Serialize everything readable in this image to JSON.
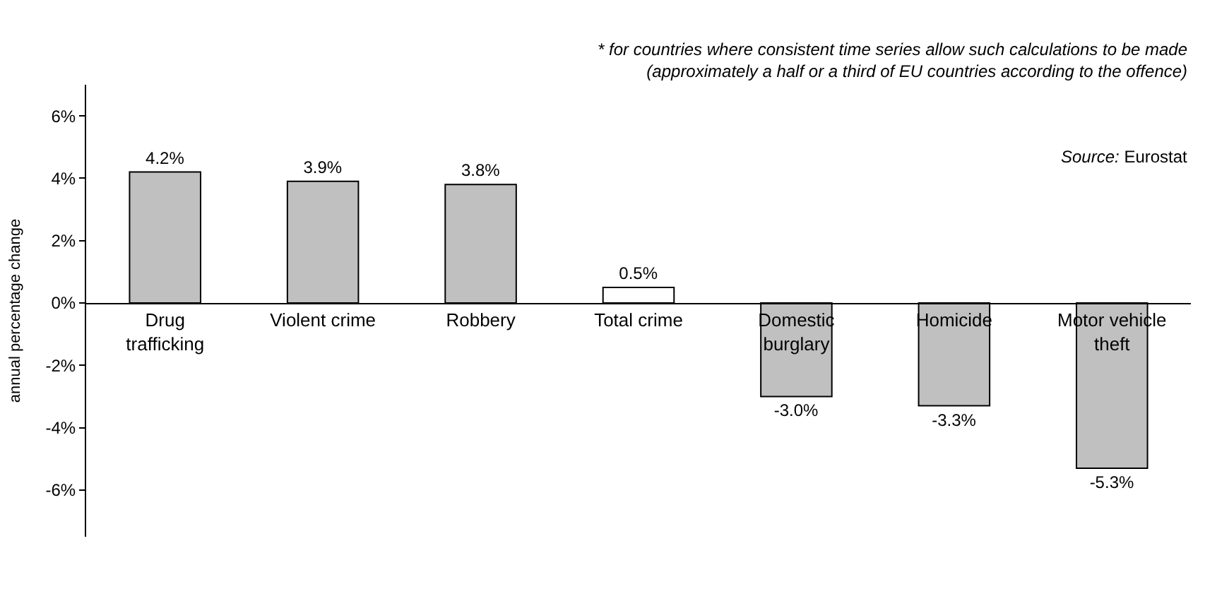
{
  "chart_data": {
    "type": "bar",
    "ylabel": "annual percentage change",
    "categories": [
      "Drug trafficking",
      "Violent crime",
      "Robbery",
      "Total crime",
      "Domestic burglary",
      "Homicide",
      "Motor vehicle theft"
    ],
    "values": [
      4.2,
      3.9,
      3.8,
      0.5,
      -3.0,
      -3.3,
      -5.3
    ],
    "value_labels": [
      "4.2%",
      "3.9%",
      "3.8%",
      "0.5%",
      "-3.0%",
      "-3.3%",
      "-5.3%"
    ],
    "colors": [
      "#c0c0c0",
      "#c0c0c0",
      "#c0c0c0",
      "#ffffff",
      "#c0c0c0",
      "#c0c0c0",
      "#c0c0c0"
    ],
    "ylim": [
      -7.5,
      7
    ],
    "yticks": [
      {
        "value": -6,
        "label": "-6%"
      },
      {
        "value": -4,
        "label": "-4%"
      },
      {
        "value": -2,
        "label": "-2%"
      },
      {
        "value": 0,
        "label": "0%"
      },
      {
        "value": 2,
        "label": "2%"
      },
      {
        "value": 4,
        "label": "4%"
      },
      {
        "value": 6,
        "label": "6%"
      }
    ],
    "legend": false,
    "annotations": [
      "* for countries where consistent time series allow such calculations to be made (approximately a half or a third of EU countries according to the offence)",
      "Source: Eurostat"
    ]
  }
}
